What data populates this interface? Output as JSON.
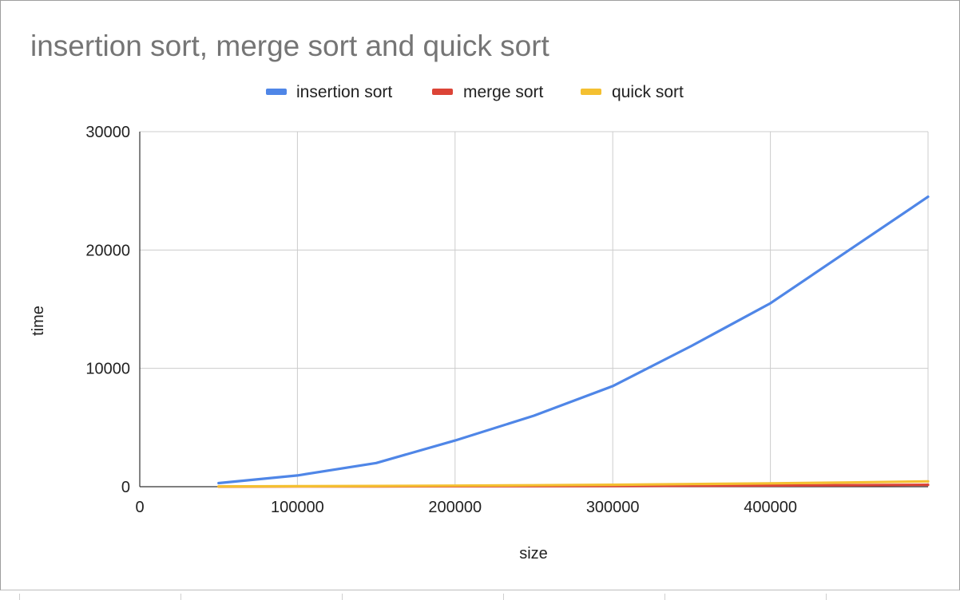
{
  "chart_data": {
    "type": "line",
    "title": "insertion sort, merge sort and quick sort",
    "xlabel": "size",
    "ylabel": "time",
    "xlim": [
      0,
      500000
    ],
    "ylim": [
      0,
      30000
    ],
    "x_ticks": [
      "0",
      "100000",
      "200000",
      "300000",
      "400000"
    ],
    "y_ticks": [
      "0",
      "10000",
      "20000",
      "30000"
    ],
    "grid": true,
    "legend_position": "top",
    "x": [
      50000,
      100000,
      150000,
      200000,
      250000,
      300000,
      350000,
      400000,
      450000,
      500000
    ],
    "series": [
      {
        "name": "insertion sort",
        "color": "#4f86e7",
        "values": [
          300,
          950,
          2000,
          3900,
          6000,
          8500,
          11900,
          15500,
          20000,
          24500
        ]
      },
      {
        "name": "merge sort",
        "color": "#dc4437",
        "values": [
          10,
          20,
          30,
          40,
          50,
          60,
          80,
          100,
          130,
          160
        ]
      },
      {
        "name": "quick sort",
        "color": "#f4c031",
        "values": [
          20,
          40,
          60,
          90,
          120,
          160,
          220,
          280,
          360,
          450
        ]
      }
    ]
  }
}
